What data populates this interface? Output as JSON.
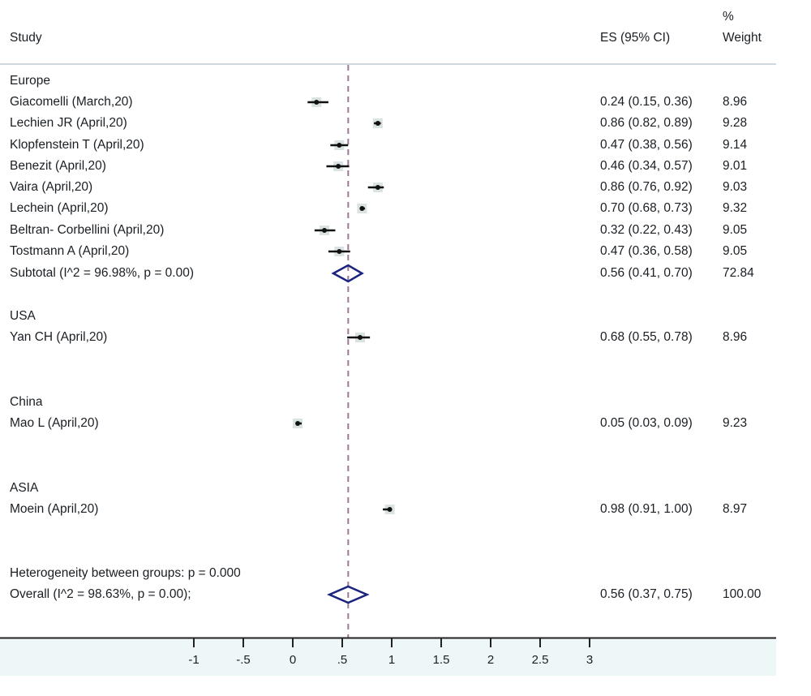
{
  "header": {
    "study": "Study",
    "es": "ES (95% CI)",
    "weight_line1": "%",
    "weight_line2": "Weight"
  },
  "colors": {
    "text": "#1a1f24",
    "marker": "#111111",
    "diamond": "#1a237e",
    "null_line": "#9c7a96",
    "band": "#eef7f8",
    "separator": "#cfd8dc"
  },
  "chart_data": {
    "type": "forest",
    "xlabel": "",
    "xlim": [
      -1,
      3
    ],
    "xticks": [
      -1,
      -0.5,
      0,
      0.5,
      1,
      1.5,
      2,
      2.5,
      3
    ],
    "xtick_labels": [
      "-1",
      "-.5",
      "0",
      ".5",
      "1",
      "1.5",
      "2",
      "2.5",
      "3"
    ],
    "reference_line": 0.56,
    "groups": [
      {
        "name": "Europe",
        "studies": [
          {
            "label": "Giacomelli (March,20)",
            "es": 0.24,
            "lo": 0.15,
            "hi": 0.36,
            "text": "0.24 (0.15, 0.36)",
            "weight": "8.96"
          },
          {
            "label": "Lechien JR (April,20)",
            "es": 0.86,
            "lo": 0.82,
            "hi": 0.89,
            "text": "0.86 (0.82, 0.89)",
            "weight": "9.28"
          },
          {
            "label": "Klopfenstein T (April,20)",
            "es": 0.47,
            "lo": 0.38,
            "hi": 0.56,
            "text": "0.47 (0.38, 0.56)",
            "weight": "9.14"
          },
          {
            "label": "Benezit (April,20)",
            "es": 0.46,
            "lo": 0.34,
            "hi": 0.57,
            "text": "0.46 (0.34, 0.57)",
            "weight": "9.01"
          },
          {
            "label": "Vaira (April,20)",
            "es": 0.86,
            "lo": 0.76,
            "hi": 0.92,
            "text": "0.86 (0.76, 0.92)",
            "weight": "9.03"
          },
          {
            "label": "Lechein (April,20)",
            "es": 0.7,
            "lo": 0.68,
            "hi": 0.73,
            "text": "0.70 (0.68, 0.73)",
            "weight": "9.32"
          },
          {
            "label": "Beltran- Corbellini (April,20)",
            "es": 0.32,
            "lo": 0.22,
            "hi": 0.43,
            "text": "0.32 (0.22, 0.43)",
            "weight": "9.05"
          },
          {
            "label": "Tostmann A (April,20)",
            "es": 0.47,
            "lo": 0.36,
            "hi": 0.58,
            "text": "0.47 (0.36, 0.58)",
            "weight": "9.05"
          }
        ],
        "subtotal": {
          "label": "Subtotal  (I^2 = 96.98%, p = 0.00)",
          "es": 0.56,
          "lo": 0.41,
          "hi": 0.7,
          "text": "0.56 (0.41, 0.70)",
          "weight": "72.84"
        }
      },
      {
        "name": "USA",
        "studies": [
          {
            "label": "Yan CH (April,20)",
            "es": 0.68,
            "lo": 0.55,
            "hi": 0.78,
            "text": "0.68 (0.55, 0.78)",
            "weight": "8.96"
          }
        ]
      },
      {
        "name": "China",
        "studies": [
          {
            "label": "Mao L (April,20)",
            "es": 0.05,
            "lo": 0.03,
            "hi": 0.09,
            "text": "0.05 (0.03, 0.09)",
            "weight": "9.23"
          }
        ]
      },
      {
        "name": "ASIA",
        "studies": [
          {
            "label": "Moein (April,20)",
            "es": 0.98,
            "lo": 0.91,
            "hi": 1.0,
            "text": "0.98 (0.91, 1.00)",
            "weight": "8.97"
          }
        ]
      }
    ],
    "heterogeneity": "Heterogeneity between groups: p = 0.000",
    "overall": {
      "label": "Overall  (I^2 = 98.63%, p = 0.00);",
      "es": 0.56,
      "lo": 0.37,
      "hi": 0.75,
      "text": "0.56 (0.37, 0.75)",
      "weight": "100.00"
    }
  }
}
